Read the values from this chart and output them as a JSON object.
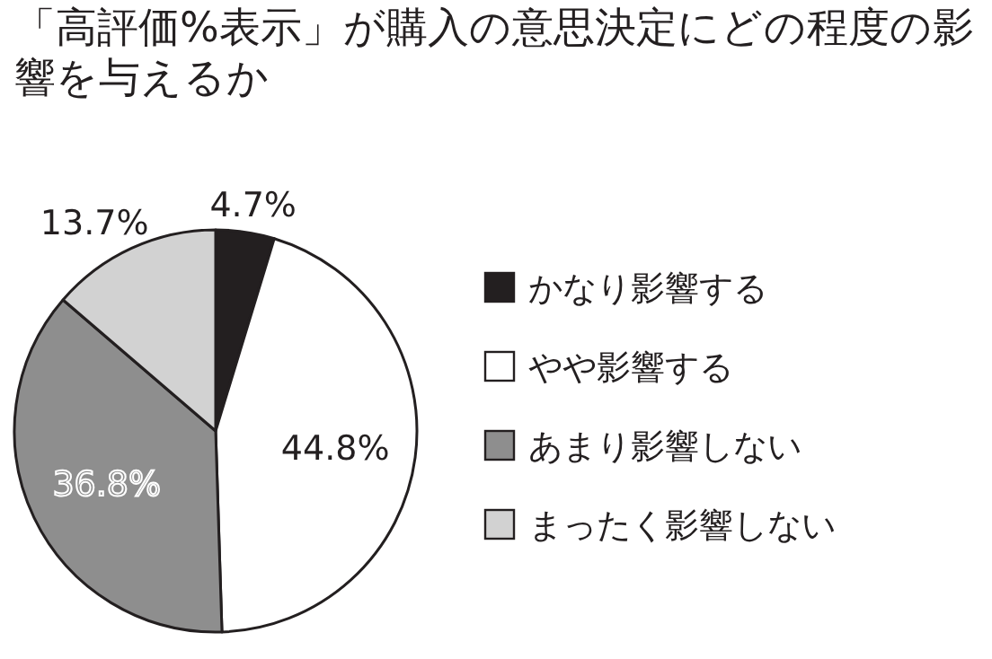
{
  "chart_data": {
    "type": "pie",
    "title": "「高評価%表示」が購入の意思決定にどの程度の影響を与えるか",
    "categories": [
      "かなり影響する",
      "やや影響する",
      "あまり影響しない",
      "まったく影響しない"
    ],
    "values": [
      4.7,
      44.8,
      36.8,
      13.7
    ],
    "value_labels": [
      "4.7%",
      "44.8%",
      "36.8%",
      "13.7%"
    ],
    "colors": [
      "#231f20",
      "#ffffff",
      "#8e8e8e",
      "#d2d2d2"
    ],
    "legend": "right"
  }
}
